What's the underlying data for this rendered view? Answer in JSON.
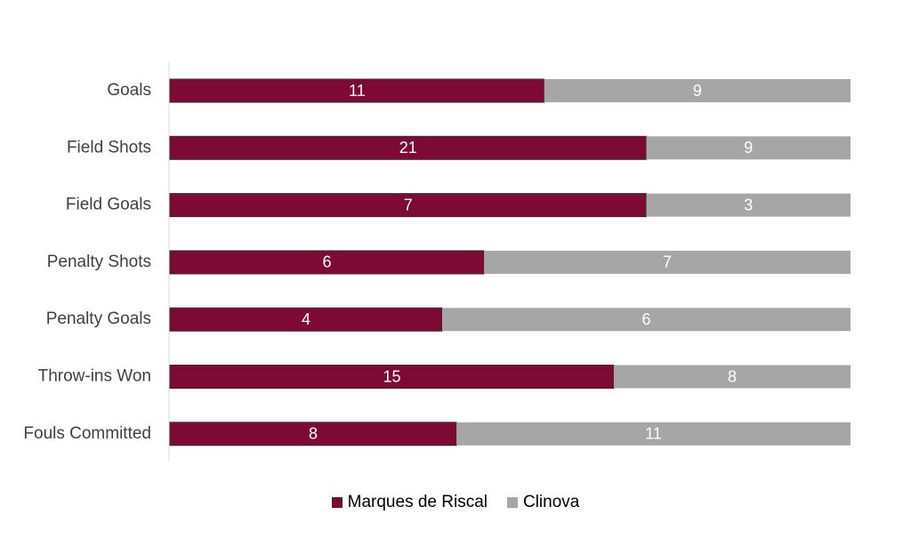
{
  "chart_data": {
    "type": "bar",
    "orientation": "horizontal",
    "stacked": "percent",
    "categories": [
      "Goals",
      "Field Shots",
      "Field Goals",
      "Penalty Shots",
      "Penalty Goals",
      "Throw-ins Won",
      "Fouls Committed"
    ],
    "series": [
      {
        "name": "Marques de Riscal",
        "values": [
          11,
          21,
          7,
          6,
          4,
          15,
          8
        ],
        "color": "#7d0a35"
      },
      {
        "name": "Clinova",
        "values": [
          9,
          9,
          3,
          7,
          6,
          8,
          11
        ],
        "color": "#a6a6a6"
      }
    ],
    "title": "",
    "xlabel": "",
    "ylabel": "",
    "grid": false,
    "legend_position": "bottom"
  }
}
